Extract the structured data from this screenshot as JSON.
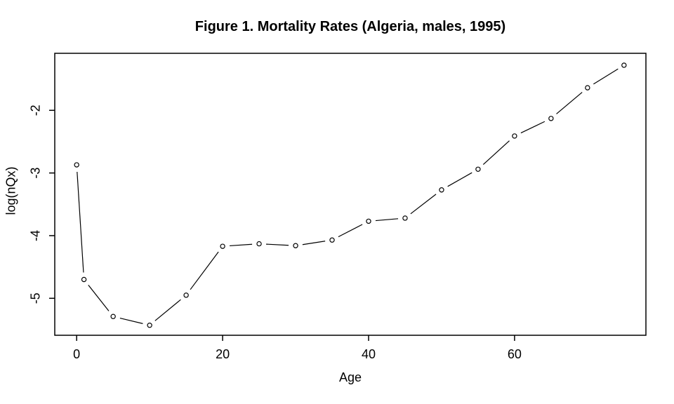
{
  "chart": {
    "title": "Figure 1. Mortality Rates (Algeria, males, 1995)",
    "xlabel": "Age",
    "ylabel": "log(nQx)"
  },
  "chart_data": {
    "type": "line",
    "title": "Figure 1. Mortality Rates (Algeria, males, 1995)",
    "xlabel": "Age",
    "ylabel": "log(nQx)",
    "x": [
      0,
      1,
      5,
      10,
      15,
      20,
      25,
      30,
      35,
      40,
      45,
      50,
      55,
      60,
      65,
      70,
      75
    ],
    "y": [
      -2.87,
      -4.7,
      -5.29,
      -5.43,
      -4.95,
      -4.17,
      -4.13,
      -4.16,
      -4.07,
      -3.77,
      -3.72,
      -3.27,
      -2.94,
      -2.41,
      -2.13,
      -1.64,
      -1.28
    ],
    "x_tick_values": [
      0,
      20,
      40,
      60
    ],
    "x_tick_labels": [
      "0",
      "20",
      "40",
      "60"
    ],
    "y_tick_values": [
      -2,
      -3,
      -4,
      -5
    ],
    "y_tick_labels": [
      "-2",
      "-3",
      "-4",
      "-5"
    ],
    "xlim": [
      -3,
      78
    ],
    "ylim": [
      -5.59,
      -1.09
    ],
    "marker": "open-circle",
    "line_style": "points-and-segments",
    "line_color": "#000000",
    "marker_stroke_color": "#000000",
    "marker_fill_color": "#ffffff",
    "axis_color": "#000000",
    "background_color": "#ffffff",
    "grid": false,
    "legend_position": "none"
  }
}
